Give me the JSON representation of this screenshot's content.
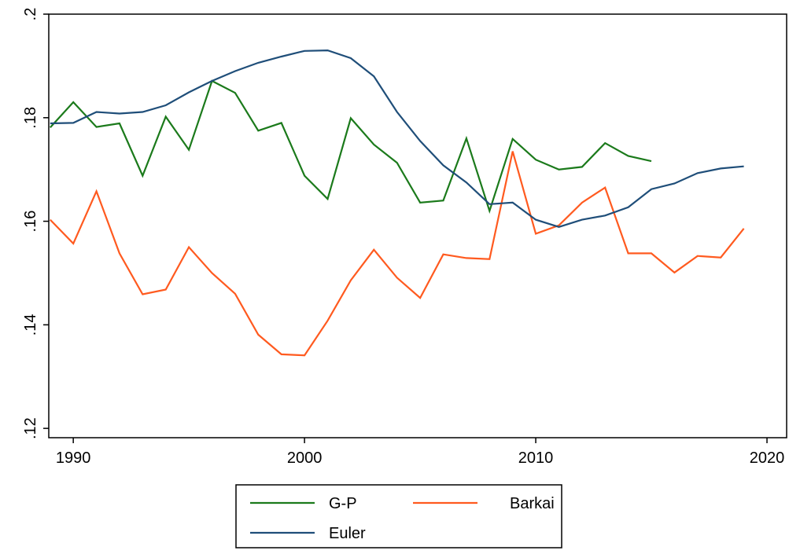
{
  "chart_data": {
    "type": "line",
    "x": [
      1989,
      1990,
      1991,
      1992,
      1993,
      1994,
      1995,
      1996,
      1997,
      1998,
      1999,
      2000,
      2001,
      2002,
      2003,
      2004,
      2005,
      2006,
      2007,
      2008,
      2009,
      2010,
      2011,
      2012,
      2013,
      2014,
      2015,
      2016,
      2017,
      2018,
      2019
    ],
    "series": [
      {
        "name": "G-P",
        "color": "#1b7a1b",
        "values": [
          0.1781,
          0.183,
          0.1782,
          0.1789,
          0.1688,
          0.1802,
          0.1738,
          0.1871,
          0.1848,
          0.1775,
          0.179,
          0.1688,
          0.1643,
          0.1799,
          0.1748,
          0.1713,
          0.1636,
          0.164,
          0.176,
          0.162,
          0.1759,
          0.1719,
          0.17,
          0.1705,
          0.1751,
          0.1726,
          0.1716,
          null,
          null,
          null,
          null
        ]
      },
      {
        "name": "Barkai",
        "color": "#ff5a1f",
        "values": [
          0.1603,
          0.1557,
          0.1658,
          0.1538,
          0.1459,
          0.1468,
          0.155,
          0.15,
          0.146,
          0.1381,
          0.1343,
          0.1341,
          0.1408,
          0.1486,
          0.1545,
          0.1491,
          0.1452,
          0.1536,
          0.1529,
          0.1527,
          0.1735,
          0.1576,
          0.1592,
          0.1636,
          0.1665,
          0.1538,
          0.1538,
          0.1501,
          0.1533,
          0.153,
          0.1586
        ]
      },
      {
        "name": "Euler",
        "color": "#1f4e79",
        "values": [
          0.1789,
          0.179,
          0.1811,
          0.1808,
          0.1811,
          0.1824,
          0.1849,
          0.1871,
          0.189,
          0.1906,
          0.1918,
          0.1929,
          0.193,
          0.1915,
          0.188,
          0.1811,
          0.1755,
          0.1708,
          0.1675,
          0.1633,
          0.1636,
          0.1603,
          0.1589,
          0.1603,
          0.1611,
          0.1627,
          0.1662,
          0.1673,
          0.1693,
          0.1702,
          0.1706
        ]
      }
    ],
    "xlim": [
      1988.94,
      2020.85
    ],
    "xticks": [
      1990,
      2000,
      2010,
      2020
    ],
    "ylim": [
      0.1182,
      0.2
    ],
    "yticks": [
      {
        "value": 0.12,
        "label": ".12"
      },
      {
        "value": 0.14,
        "label": ".14"
      },
      {
        "value": 0.16,
        "label": ".16"
      },
      {
        "value": 0.18,
        "label": ".18"
      },
      {
        "value": 0.2,
        "label": ".2"
      }
    ],
    "grid": false
  }
}
